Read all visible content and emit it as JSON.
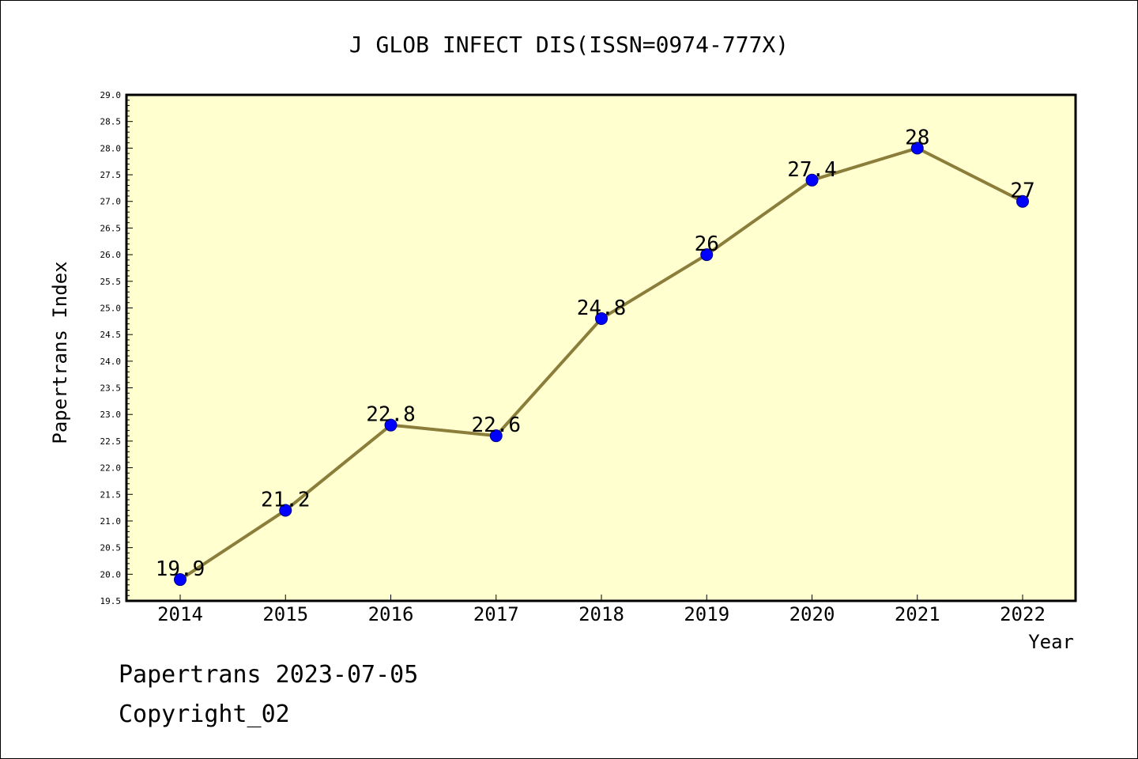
{
  "chart_data": {
    "type": "line",
    "title": "J GLOB INFECT DIS(ISSN=0974-777X)",
    "xlabel": "Year",
    "ylabel": "Papertrans Index",
    "categories": [
      "2014",
      "2015",
      "2016",
      "2017",
      "2018",
      "2019",
      "2020",
      "2021",
      "2022"
    ],
    "values": [
      19.9,
      21.2,
      22.8,
      22.6,
      24.8,
      26,
      27.4,
      28,
      27
    ],
    "data_labels": [
      "19.9",
      "21.2",
      "22.8",
      "22.6",
      "24.8",
      "26",
      "27.4",
      "28",
      "27"
    ],
    "ylim": [
      19.5,
      29.0
    ],
    "yticks": [
      "19.5",
      "20.0",
      "20.5",
      "21.0",
      "21.5",
      "22.0",
      "22.5",
      "23.0",
      "23.5",
      "24.0",
      "24.5",
      "25.0",
      "25.5",
      "26.0",
      "26.5",
      "27.0",
      "27.5",
      "28.0",
      "28.5",
      "29.0"
    ],
    "grid": false,
    "colors": {
      "plot_background": "#ffffd0",
      "line": "#8b7d3a",
      "marker": "#0000ff"
    }
  },
  "footer": {
    "line1": "Papertrans 2023-07-05",
    "line2": "Copyright_02"
  }
}
